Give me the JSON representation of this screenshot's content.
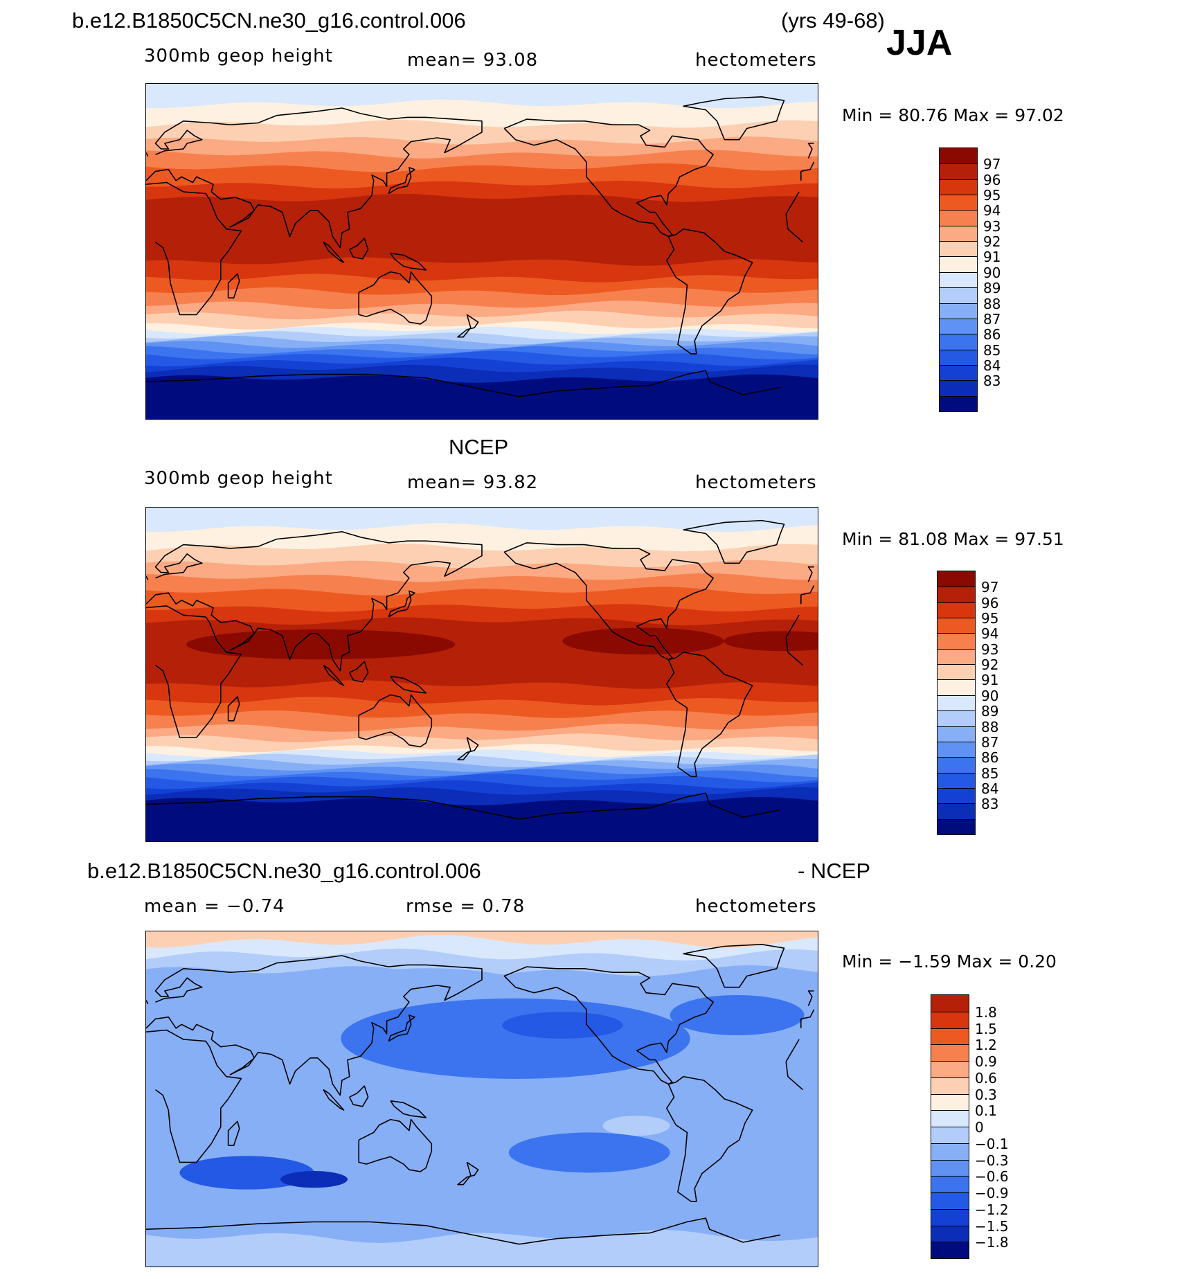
{
  "header": {
    "case": "b.e12.B1850C5CN.ne30_g16.control.006",
    "years": "(yrs 49-68)",
    "season": "JJA"
  },
  "panels": [
    {
      "id": "model",
      "title": "",
      "variable": "300mb geop height",
      "stat": "mean=   93.08",
      "units": "hectometers",
      "minmax": "Min =   80.76  Max =   97.02",
      "palette": [
        "#000c7d",
        "#0b2db7",
        "#1441d4",
        "#2459e6",
        "#3b74ee",
        "#5f92f3",
        "#87aff6",
        "#b3cdfa",
        "#d9e8fc",
        "#fff1e1",
        "#fdd0b3",
        "#fbaa83",
        "#f6814e",
        "#ec5a22",
        "#d7360e",
        "#b42008",
        "#8a0a02"
      ],
      "labels": [
        "97",
        "96",
        "95",
        "94",
        "93",
        "92",
        "91",
        "90",
        "89",
        "88",
        "87",
        "86",
        "85",
        "84",
        "83"
      ]
    },
    {
      "id": "obs",
      "title": "NCEP",
      "variable": "300mb geop height",
      "stat": "mean=   93.82",
      "units": "hectometers",
      "minmax": "Min =   81.08  Max =   97.51",
      "palette": [
        "#000c7d",
        "#0b2db7",
        "#1441d4",
        "#2459e6",
        "#3b74ee",
        "#5f92f3",
        "#87aff6",
        "#b3cdfa",
        "#d9e8fc",
        "#fff1e1",
        "#fdd0b3",
        "#fbaa83",
        "#f6814e",
        "#ec5a22",
        "#d7360e",
        "#b42008",
        "#8a0a02"
      ],
      "labels": [
        "97",
        "96",
        "95",
        "94",
        "93",
        "92",
        "91",
        "90",
        "89",
        "88",
        "87",
        "86",
        "85",
        "84",
        "83"
      ]
    },
    {
      "id": "diff",
      "title_left": "b.e12.B1850C5CN.ne30_g16.control.006",
      "title_right": "- NCEP",
      "mean": "mean =   −0.74",
      "rmse": "rmse =    0.78",
      "units": "hectometers",
      "minmax": "Min =   −1.59  Max =    0.20",
      "palette": [
        "#000c7d",
        "#0b2db7",
        "#1441d4",
        "#2459e6",
        "#3b74ee",
        "#5f92f3",
        "#87aff6",
        "#b3cdfa",
        "#d9e8fc",
        "#fff1e1",
        "#fdd0b3",
        "#fbaa83",
        "#f6814e",
        "#ec5a22",
        "#d7360e",
        "#b42008"
      ],
      "labels": [
        "1.8",
        "1.5",
        "1.2",
        "0.9",
        "0.6",
        "0.3",
        "0.1",
        "0",
        "−0.1",
        "−0.3",
        "−0.6",
        "−0.9",
        "−1.2",
        "−1.5",
        "−1.8"
      ]
    }
  ]
}
